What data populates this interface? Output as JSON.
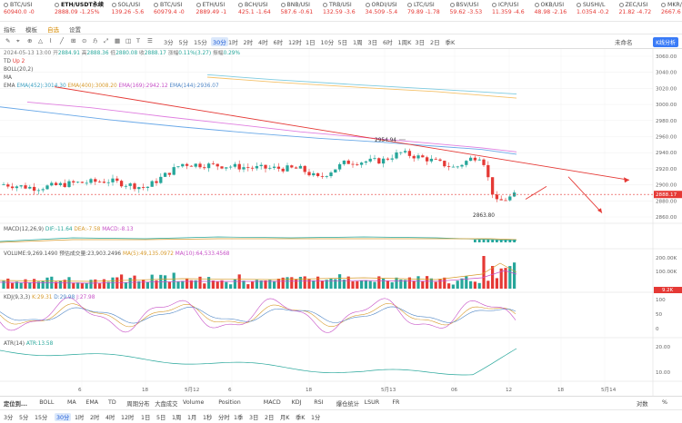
{
  "ticker": [
    {
      "name": "BTC/USI",
      "price": "60940.0",
      "change": "-0",
      "dir": "dn"
    },
    {
      "name": "ETH/USDT永续",
      "price": "2888.09",
      "change": "-1.25%",
      "dir": "dn",
      "selected": true
    },
    {
      "name": "SOL/USI",
      "price": "139.26",
      "change": "-5.6",
      "dir": "dn"
    },
    {
      "name": "BTC/USI",
      "price": "60979.4",
      "change": "-0",
      "dir": "dn"
    },
    {
      "name": "ETH/USI",
      "price": "2889.49",
      "change": "-1",
      "dir": "dn"
    },
    {
      "name": "BCH/USI",
      "price": "425.1",
      "change": "-1.64",
      "dir": "dn"
    },
    {
      "name": "BNB/USI",
      "price": "587.6",
      "change": "-0.61",
      "dir": "dn"
    },
    {
      "name": "TRB/USI",
      "price": "132.59",
      "change": "-3.6",
      "dir": "dn"
    },
    {
      "name": "ORDI/USI",
      "price": "34.509",
      "change": "-5.4",
      "dir": "dn"
    },
    {
      "name": "LTC/USI",
      "price": "79.89",
      "change": "-1.78",
      "dir": "dn"
    },
    {
      "name": "BSV/USI",
      "price": "59.62",
      "change": "-3.53",
      "dir": "dn"
    },
    {
      "name": "ICP/USI",
      "price": "11.359",
      "change": "-4.6",
      "dir": "dn"
    },
    {
      "name": "OKB/USI",
      "price": "48.98",
      "change": "-2.16",
      "dir": "dn"
    },
    {
      "name": "SUSHI/L",
      "price": "1.0354",
      "change": "-0.2",
      "dir": "dn"
    },
    {
      "name": "ZEC/USI",
      "price": "21.82",
      "change": "-4.72",
      "dir": "dn"
    },
    {
      "name": "MKR/US",
      "price": "2667.6",
      "change": "-1.5",
      "dir": "dn"
    }
  ],
  "toolbar": {
    "left": [
      "指标",
      "模板",
      "自选",
      "设置",
      "画线",
      "指标",
      "周期",
      "多窗",
      "对比",
      "覆盖"
    ],
    "timeframes": [
      "3分",
      "5分",
      "15分",
      "30分",
      "1时",
      "2时",
      "4时",
      "6时",
      "12时",
      "1日",
      "10分",
      "5日",
      "1周",
      "3日",
      "6时",
      "1周K",
      "3日",
      "2日",
      "季K"
    ],
    "active_tf": "30分",
    "right_label": "未命名",
    "right_button": "K线分析"
  },
  "legend": {
    "date": "2024-05-13 13:00",
    "open_label": "开",
    "open": "2884.91",
    "high_label": "高",
    "high": "2888.36",
    "low_label": "低",
    "low": "2880.08",
    "close_label": "收",
    "close": "2888.17",
    "change_label": "涨幅",
    "change": "0.11%(3.27)",
    "amp_label": "振幅",
    "amp": "0.29%",
    "td": "TD",
    "td_val": "Up 2",
    "boll": "BOLL(20,2)",
    "ma": "MA",
    "ema": "EMA",
    "ema452": "EMA(452):3014.30",
    "ema400": "EMA(400):3008.20",
    "ema169": "EMA(169):2942.12",
    "ema144": "EMA(144):2936.07"
  },
  "annotations": {
    "high_label": "2954.94",
    "low_label": "2863.80",
    "last_price": "2888.17"
  },
  "price_axis": [
    "3060.00",
    "3040.00",
    "3020.00",
    "3000.00",
    "2980.00",
    "2960.00",
    "2940.00",
    "2920.00",
    "2900.00",
    "2880.00",
    "2860.00"
  ],
  "macd": {
    "label": "MACD(12,26,9)",
    "dif": "DIF:-11.64",
    "dea": "DEA:-7.58",
    "macd": "MACD:-8.13"
  },
  "volume": {
    "label": "VOLUME:9,269.1490",
    "turnover": "预估成交量:23,903.2496",
    "ma5": "MA(5):49,135.0972",
    "ma10": "MA(10):64,533.4568",
    "axis": [
      "200.00K",
      "100.00K"
    ],
    "last": "9.2K"
  },
  "kdj": {
    "label": "KDJ(9,3,3)",
    "k": "K:29.31",
    "d": "D:29.98",
    "j": "J:27.98",
    "axis": [
      "100",
      "50",
      "0"
    ]
  },
  "atr": {
    "label": "ATR(14)",
    "value": "ATR:13.58",
    "axis": [
      "20.00",
      "10.00"
    ]
  },
  "time_axis": [
    "6",
    "18",
    "5月12",
    "6",
    "18",
    "5月13",
    "06",
    "12",
    "18",
    "5月14"
  ],
  "bottom_bar1": {
    "items": [
      "定位到...",
      "BOLL",
      "MA",
      "EMA",
      "TD",
      "周期分布",
      "大盘成交",
      "Volume",
      "Position",
      "MACD",
      "KDJ",
      "RSI",
      "爆仓统计",
      "LSUR",
      "FR"
    ],
    "right": [
      "对数",
      "%"
    ]
  },
  "bottom_bar2": {
    "items": [
      "3分",
      "5分",
      "15分",
      "30分",
      "1时",
      "2时",
      "4时",
      "12时",
      "1日",
      "5日",
      "1周",
      "1月",
      "1秒",
      "分时",
      "1季",
      "3日",
      "2日",
      "月K",
      "季K",
      "1分"
    ],
    "active": "30分"
  },
  "colors": {
    "up": "#26a69a",
    "down": "#e53935",
    "accent": "#1e5bd6",
    "ema452": "#7ecbe0",
    "ema400": "#f5c26b",
    "ema169": "#e07fe0",
    "ema144": "#6aa9e8",
    "trend": "#e53935"
  }
}
